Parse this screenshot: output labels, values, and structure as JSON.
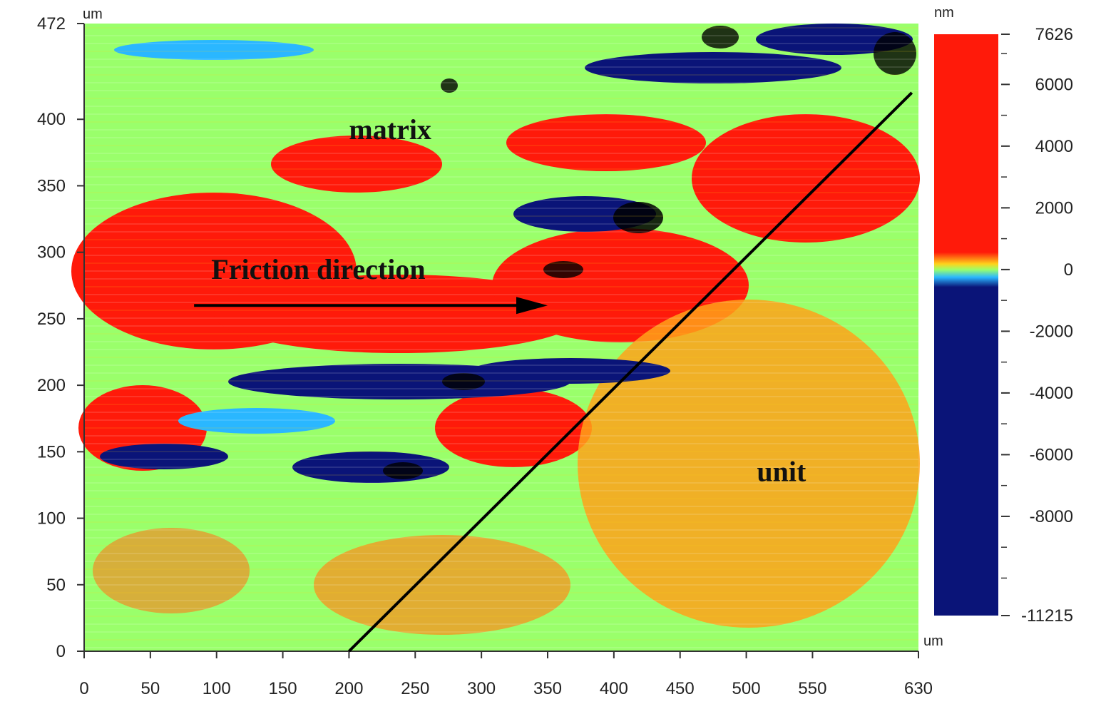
{
  "chart_data": {
    "type": "heatmap",
    "x_unit": "um",
    "y_unit": "um",
    "xlim": [
      0,
      630
    ],
    "ylim": [
      0,
      472
    ],
    "x_ticks": [
      0,
      50,
      100,
      150,
      200,
      250,
      300,
      350,
      400,
      450,
      500,
      550,
      630
    ],
    "y_ticks": [
      0,
      50,
      100,
      150,
      200,
      250,
      300,
      350,
      400,
      472
    ],
    "colorbar": {
      "unit": "nm",
      "range": [
        -11215,
        7626
      ],
      "ticks": [
        7626,
        6000,
        4000,
        2000,
        0,
        -2000,
        -4000,
        -6000,
        -8000,
        -11215
      ],
      "colors": {
        "high": "#ff1a0a",
        "mid_upper": "#ffd21a",
        "mid": "#9aff6b",
        "mid_lower": "#2ab7ff",
        "low": "#0a1478"
      }
    },
    "annotations": [
      {
        "text": "matrix",
        "x": 200,
        "y": 385
      },
      {
        "text": "Friction direction",
        "x": 96,
        "y": 280
      },
      {
        "text": "unit",
        "x": 508,
        "y": 128
      }
    ],
    "arrow": {
      "from": [
        83,
        260
      ],
      "to": [
        350,
        260
      ]
    },
    "boundary_line": {
      "from": [
        200,
        0
      ],
      "to": [
        625,
        420
      ]
    }
  }
}
